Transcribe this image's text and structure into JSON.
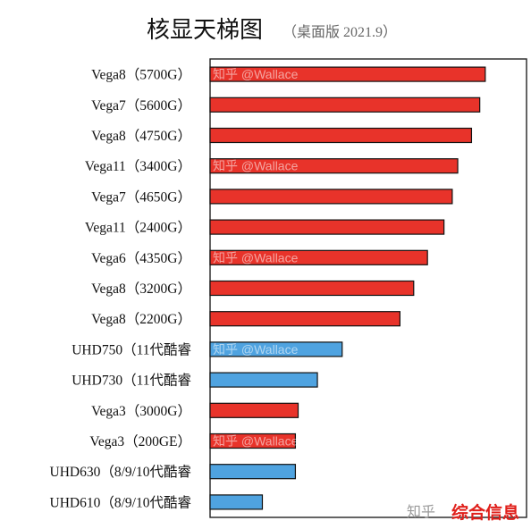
{
  "chart_data": {
    "type": "bar",
    "orientation": "horizontal",
    "title": "核显天梯图",
    "subtitle": "（桌面版 2021.9）",
    "categories": [
      "Vega8（5700G）",
      "Vega7（5600G）",
      "Vega8（4750G）",
      "Vega11（3400G）",
      "Vega7（4650G）",
      "Vega11（2400G）",
      "Vega6（4350G）",
      "Vega8（3200G）",
      "Vega8（2200G）",
      "UHD750（11代酷睿",
      "UHD730（11代酷睿",
      "Vega3（3000G）",
      "Vega3（200GE）",
      "UHD630（8/9/10代酷睿",
      "UHD610（8/9/10代酷睿"
    ],
    "values": [
      100,
      98,
      95,
      90,
      88,
      85,
      79,
      74,
      69,
      48,
      39,
      32,
      31,
      31,
      19
    ],
    "value_scale_max": 115,
    "bar_colors": [
      "red",
      "red",
      "red",
      "red",
      "red",
      "red",
      "red",
      "red",
      "red",
      "blue",
      "blue",
      "red",
      "red",
      "blue",
      "blue"
    ],
    "colors": {
      "red": "#e8332a",
      "blue": "#4fa3e0",
      "outline": "#111111",
      "axis": "#222222"
    },
    "grid": false,
    "legend": "none"
  },
  "watermark": {
    "text": "知乎 @Wallace",
    "rows": [
      0,
      3,
      6,
      9,
      12
    ],
    "corner_text": "知乎",
    "corner_brand": "综合信息"
  }
}
